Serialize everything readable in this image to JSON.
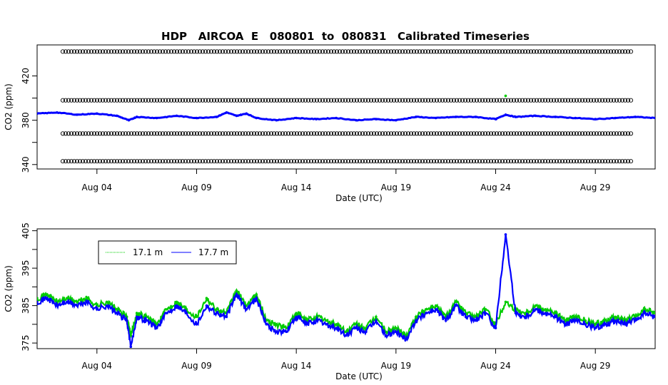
{
  "chart_data": [
    {
      "type": "scatter",
      "title": "HDP   AIRCOA  E   080801  to  080831   Calibrated Timeseries",
      "xlabel": "Date (UTC)",
      "ylabel": "CO2 (ppm)",
      "x_unit": "day of August 2008",
      "xlim": [
        1,
        32
      ],
      "ylim": [
        336,
        448
      ],
      "yticks": [
        340,
        360,
        380,
        400,
        420
      ],
      "ytick_labels": [
        "340",
        "380",
        "420"
      ],
      "xticks": [
        4,
        9,
        14,
        19,
        24,
        29
      ],
      "xtick_labels": [
        "Aug 04",
        "Aug 09",
        "Aug 14",
        "Aug 19",
        "Aug 24",
        "Aug 29"
      ],
      "reference_levels": [
        {
          "value": 442,
          "color": "#000000",
          "marker": "open-circle"
        },
        {
          "value": 398,
          "color": "#000000",
          "marker": "open-circle"
        },
        {
          "value": 368,
          "color": "#000000",
          "marker": "open-circle"
        },
        {
          "value": 343,
          "color": "#000000",
          "marker": "open-circle"
        }
      ],
      "reference_x_range": [
        1,
        32
      ],
      "series": [
        {
          "color": "#0000ff",
          "x": [
            1.0,
            2.0,
            3.0,
            4.0,
            5.0,
            5.6,
            6.0,
            7.0,
            8.0,
            9.0,
            10.0,
            10.5,
            11.0,
            11.5,
            12.0,
            13.0,
            14.0,
            15.0,
            16.0,
            17.0,
            18.0,
            19.0,
            20.0,
            21.0,
            22.0,
            23.0,
            24.0,
            24.5,
            25.0,
            26.0,
            27.0,
            28.0,
            29.0,
            30.0,
            31.0,
            32.0
          ],
          "y": [
            386,
            387,
            385,
            386,
            384,
            380,
            383,
            382,
            384,
            382,
            383,
            387,
            384,
            386,
            382,
            380,
            382,
            381,
            382,
            380,
            381,
            380,
            383,
            382,
            383,
            383,
            381,
            385,
            383,
            384,
            383,
            382,
            381,
            382,
            383,
            382
          ]
        },
        {
          "color": "#00cc00",
          "x": [
            24.5
          ],
          "y": [
            402
          ]
        }
      ]
    },
    {
      "type": "line",
      "xlabel": "Date (UTC)",
      "ylabel": "CO2 (ppm)",
      "x_unit": "day of August 2008",
      "xlim": [
        1,
        32
      ],
      "ylim": [
        373.5,
        405.5
      ],
      "yticks": [
        375,
        380,
        385,
        390,
        395,
        400,
        405
      ],
      "ytick_labels": [
        "375",
        "385",
        "395",
        "405"
      ],
      "xticks": [
        4,
        9,
        14,
        19,
        24,
        29
      ],
      "xtick_labels": [
        "Aug 04",
        "Aug 09",
        "Aug 14",
        "Aug 19",
        "Aug 24",
        "Aug 29"
      ],
      "legend": {
        "position": "top-left"
      },
      "series": [
        {
          "name": "17.1 m",
          "color": "#00cc00",
          "x": [
            1.0,
            1.5,
            2.0,
            2.5,
            3.0,
            3.5,
            4.0,
            4.5,
            5.0,
            5.5,
            5.7,
            6.0,
            6.5,
            7.0,
            7.5,
            8.0,
            8.5,
            9.0,
            9.5,
            10.0,
            10.5,
            11.0,
            11.5,
            12.0,
            12.5,
            13.0,
            13.5,
            14.0,
            14.5,
            15.0,
            15.5,
            16.0,
            16.5,
            17.0,
            17.5,
            18.0,
            18.5,
            19.0,
            19.5,
            20.0,
            20.5,
            21.0,
            21.5,
            22.0,
            22.5,
            23.0,
            23.5,
            24.0,
            24.5,
            25.0,
            25.5,
            26.0,
            26.5,
            27.0,
            27.5,
            28.0,
            28.5,
            29.0,
            29.5,
            30.0,
            30.5,
            31.0,
            31.5,
            32.0
          ],
          "y": [
            387,
            388,
            386,
            387,
            386,
            387,
            385,
            386,
            384,
            382,
            377,
            383,
            382,
            380,
            384,
            386,
            384,
            382,
            387,
            384,
            383,
            389,
            385,
            388,
            381,
            380,
            379,
            383,
            381,
            382,
            381,
            380,
            378,
            380,
            379,
            382,
            378,
            379,
            377,
            382,
            384,
            385,
            382,
            386,
            383,
            382,
            384,
            380,
            386,
            384,
            383,
            385,
            384,
            383,
            381,
            382,
            381,
            380,
            381,
            382,
            381,
            382,
            384,
            383
          ]
        },
        {
          "name": "17.7 m",
          "color": "#0000ff",
          "x": [
            1.0,
            1.5,
            2.0,
            2.5,
            3.0,
            3.5,
            4.0,
            4.5,
            5.0,
            5.5,
            5.7,
            6.0,
            6.5,
            7.0,
            7.5,
            8.0,
            8.5,
            9.0,
            9.5,
            10.0,
            10.5,
            11.0,
            11.5,
            12.0,
            12.5,
            13.0,
            13.5,
            14.0,
            14.5,
            15.0,
            15.5,
            16.0,
            16.5,
            17.0,
            17.5,
            18.0,
            18.5,
            19.0,
            19.5,
            20.0,
            20.5,
            21.0,
            21.5,
            22.0,
            22.5,
            23.0,
            23.5,
            24.0,
            24.5,
            25.0,
            25.5,
            26.0,
            26.5,
            27.0,
            27.5,
            28.0,
            28.5,
            29.0,
            29.5,
            30.0,
            30.5,
            31.0,
            31.5,
            32.0
          ],
          "y": [
            386,
            387,
            385,
            386,
            385,
            386,
            384,
            385,
            383,
            381,
            374,
            382,
            381,
            379,
            383,
            385,
            383,
            380,
            385,
            383,
            382,
            388,
            384,
            387,
            380,
            378,
            378,
            382,
            380,
            381,
            380,
            379,
            377,
            379,
            378,
            381,
            377,
            378,
            376,
            381,
            383,
            384,
            381,
            385,
            382,
            381,
            383,
            379,
            404,
            383,
            382,
            384,
            383,
            382,
            380,
            381,
            380,
            379,
            380,
            381,
            380,
            381,
            383,
            382
          ]
        }
      ]
    }
  ]
}
